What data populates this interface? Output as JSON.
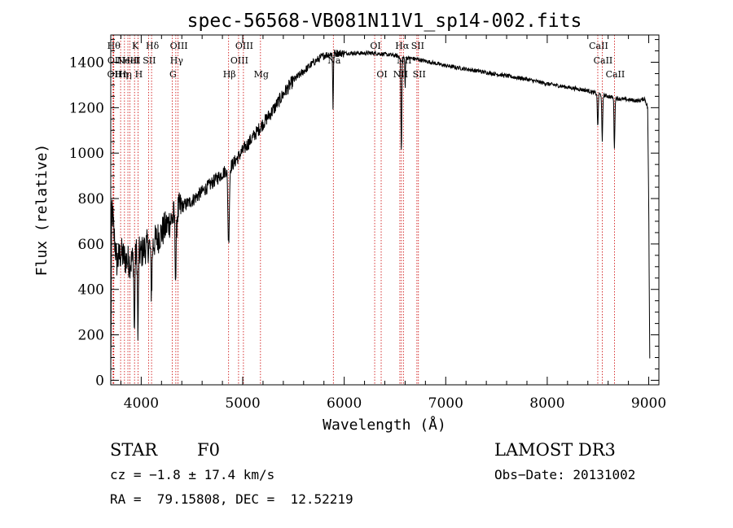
{
  "chart_data": {
    "type": "line",
    "title": "spec-56568-VB081N11V1_sp14-002.fits",
    "xlabel": "Wavelength (Å)",
    "ylabel": "Flux (relative)",
    "xlim": [
      3700,
      9100
    ],
    "ylim": [
      -20,
      1520
    ],
    "xticks": [
      4000,
      5000,
      6000,
      7000,
      8000,
      9000
    ],
    "yticks": [
      0,
      200,
      400,
      600,
      800,
      1000,
      1200,
      1400
    ],
    "grid": false,
    "line_color": "#000000",
    "marker_color": "#cc0000",
    "spectrum_anchors": [
      [
        3700,
        0
      ],
      [
        3710,
        780
      ],
      [
        3730,
        650
      ],
      [
        3760,
        520
      ],
      [
        3800,
        560
      ],
      [
        3850,
        530
      ],
      [
        3900,
        520
      ],
      [
        3950,
        560
      ],
      [
        4000,
        560
      ],
      [
        4050,
        590
      ],
      [
        4100,
        590
      ],
      [
        4150,
        620
      ],
      [
        4200,
        650
      ],
      [
        4250,
        680
      ],
      [
        4300,
        710
      ],
      [
        4350,
        740
      ],
      [
        4400,
        765
      ],
      [
        4500,
        790
      ],
      [
        4600,
        830
      ],
      [
        4700,
        870
      ],
      [
        4800,
        910
      ],
      [
        4900,
        950
      ],
      [
        5000,
        1010
      ],
      [
        5100,
        1070
      ],
      [
        5200,
        1130
      ],
      [
        5300,
        1190
      ],
      [
        5400,
        1260
      ],
      [
        5500,
        1320
      ],
      [
        5600,
        1360
      ],
      [
        5700,
        1400
      ],
      [
        5800,
        1430
      ],
      [
        5900,
        1440
      ],
      [
        6000,
        1440
      ],
      [
        6100,
        1440
      ],
      [
        6200,
        1440
      ],
      [
        6300,
        1440
      ],
      [
        6400,
        1435
      ],
      [
        6500,
        1430
      ],
      [
        6600,
        1420
      ],
      [
        6700,
        1415
      ],
      [
        6800,
        1405
      ],
      [
        6900,
        1395
      ],
      [
        7000,
        1385
      ],
      [
        7200,
        1370
      ],
      [
        7400,
        1355
      ],
      [
        7600,
        1340
      ],
      [
        7800,
        1325
      ],
      [
        8000,
        1305
      ],
      [
        8200,
        1290
      ],
      [
        8400,
        1275
      ],
      [
        8500,
        1260
      ],
      [
        8600,
        1250
      ],
      [
        8700,
        1240
      ],
      [
        8800,
        1235
      ],
      [
        8900,
        1230
      ],
      [
        8960,
        1240
      ],
      [
        8990,
        1200
      ],
      [
        9000,
        760
      ],
      [
        9010,
        100
      ]
    ],
    "absorption_features": [
      {
        "x": 3933,
        "depth": 350,
        "width": 6
      },
      {
        "x": 3968,
        "depth": 380,
        "width": 6
      },
      {
        "x": 4101,
        "depth": 200,
        "width": 8
      },
      {
        "x": 4340,
        "depth": 280,
        "width": 8
      },
      {
        "x": 4861,
        "depth": 330,
        "width": 10
      },
      {
        "x": 5890,
        "depth": 240,
        "width": 5
      },
      {
        "x": 6563,
        "depth": 420,
        "width": 6
      },
      {
        "x": 6600,
        "depth": 140,
        "width": 4
      },
      {
        "x": 8498,
        "depth": 150,
        "width": 6
      },
      {
        "x": 8542,
        "depth": 210,
        "width": 6
      },
      {
        "x": 8662,
        "depth": 220,
        "width": 6
      }
    ],
    "line_markers": [
      {
        "x": 3722,
        "label": "Hθ",
        "row": 0
      },
      {
        "x": 3730,
        "label": "OII",
        "row": 1
      },
      {
        "x": 3727,
        "label": "OII",
        "row": 2
      },
      {
        "x": 3797,
        "label": "Hη",
        "row": 2
      },
      {
        "x": 3835,
        "label": "Hη",
        "row": 2
      },
      {
        "x": 3869,
        "label": "NeIII",
        "row": 1
      },
      {
        "x": 3889,
        "label": "HeI",
        "row": 1
      },
      {
        "x": 3934,
        "label": "K",
        "row": 0
      },
      {
        "x": 3968,
        "label": "H",
        "row": 2
      },
      {
        "x": 4072,
        "label": "SII",
        "row": 1
      },
      {
        "x": 4102,
        "label": "Hδ",
        "row": 0
      },
      {
        "x": 4305,
        "label": "G",
        "row": 2
      },
      {
        "x": 4341,
        "label": "Hγ",
        "row": 1
      },
      {
        "x": 4363,
        "label": "OIII",
        "row": 0
      },
      {
        "x": 4861,
        "label": "Hβ",
        "row": 2
      },
      {
        "x": 4959,
        "label": "OIII",
        "row": 1
      },
      {
        "x": 5007,
        "label": "OIII",
        "row": 0
      },
      {
        "x": 5175,
        "label": "Mg",
        "row": 2
      },
      {
        "x": 5893,
        "label": "Na",
        "row": 1
      },
      {
        "x": 6300,
        "label": "OI",
        "row": 0
      },
      {
        "x": 6364,
        "label": "OI",
        "row": 2
      },
      {
        "x": 6548,
        "label": "NII",
        "row": 2
      },
      {
        "x": 6563,
        "label": "Hα",
        "row": 0
      },
      {
        "x": 6583,
        "label": "NII",
        "row": 1
      },
      {
        "x": 6716,
        "label": "SII",
        "row": 0
      },
      {
        "x": 6731,
        "label": "SII",
        "row": 2
      },
      {
        "x": 8498,
        "label": "CaII",
        "row": 0
      },
      {
        "x": 8542,
        "label": "CaII",
        "row": 1
      },
      {
        "x": 8662,
        "label": "CaII",
        "row": 2
      }
    ]
  },
  "info": {
    "object_class": "STAR",
    "subclass": "F0",
    "survey": "LAMOST DR3",
    "cz": "cz = −1.8 ± 17.4 km/s",
    "obs_date": "Obs−Date: 20131002",
    "coords": "RA =  79.15808, DEC =  12.52219"
  }
}
